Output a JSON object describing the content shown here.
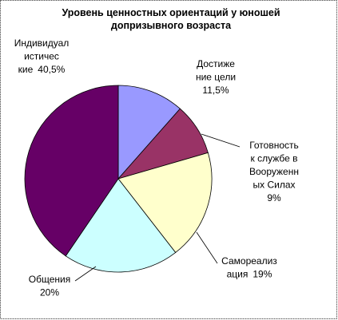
{
  "chart_data": {
    "type": "pie",
    "title": "Уровень ценностных ориентаций у юношей\nдопризывного возраста",
    "categories": [
      "Достиже\nние цели",
      "Готовность\nк службе в\nВооруженн\nых Силах",
      "Самореализ\nация",
      "Общения",
      "Индивидуал\nистичес\nкие"
    ],
    "values": [
      11.5,
      9,
      19,
      20,
      40.5
    ],
    "value_labels": [
      "11,5%",
      "9%",
      "19%",
      "20%",
      "40,5%"
    ],
    "colors": [
      "#9999ff",
      "#993366",
      "#ffffcc",
      "#ccffff",
      "#660066"
    ]
  }
}
